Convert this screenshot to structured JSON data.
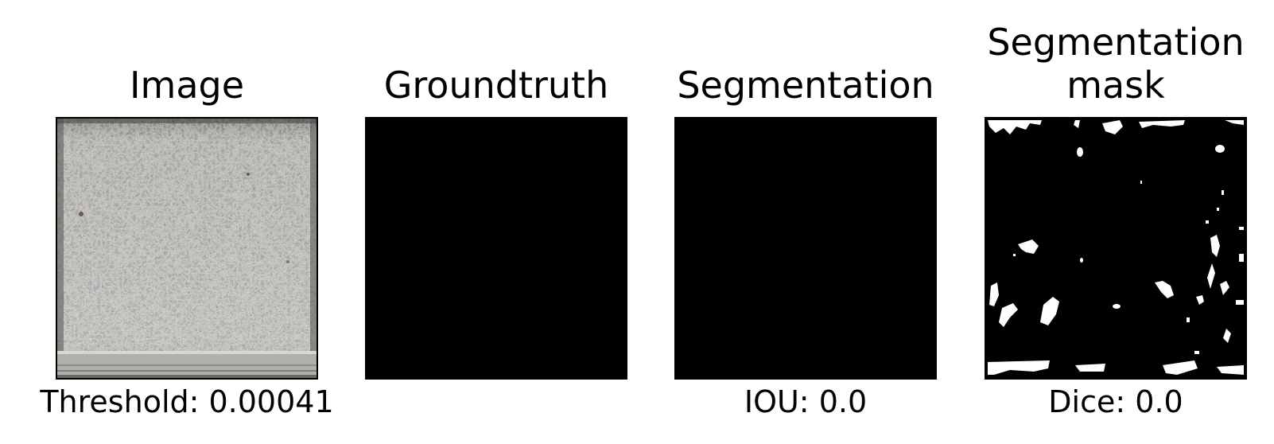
{
  "panels": [
    {
      "title_lines": [
        "Image"
      ],
      "caption": "Threshold: 0.00041"
    },
    {
      "title_lines": [
        "Groundtruth"
      ],
      "caption": ""
    },
    {
      "title_lines": [
        "Segmentation"
      ],
      "caption": "IOU: 0.0"
    },
    {
      "title_lines": [
        "Segmentation",
        "mask"
      ],
      "caption": "Dice: 0.0"
    }
  ],
  "colors": {
    "background": "#ffffff",
    "mask_off": "#000000",
    "mask_on": "#ffffff",
    "concrete": "#b9b7b2"
  }
}
